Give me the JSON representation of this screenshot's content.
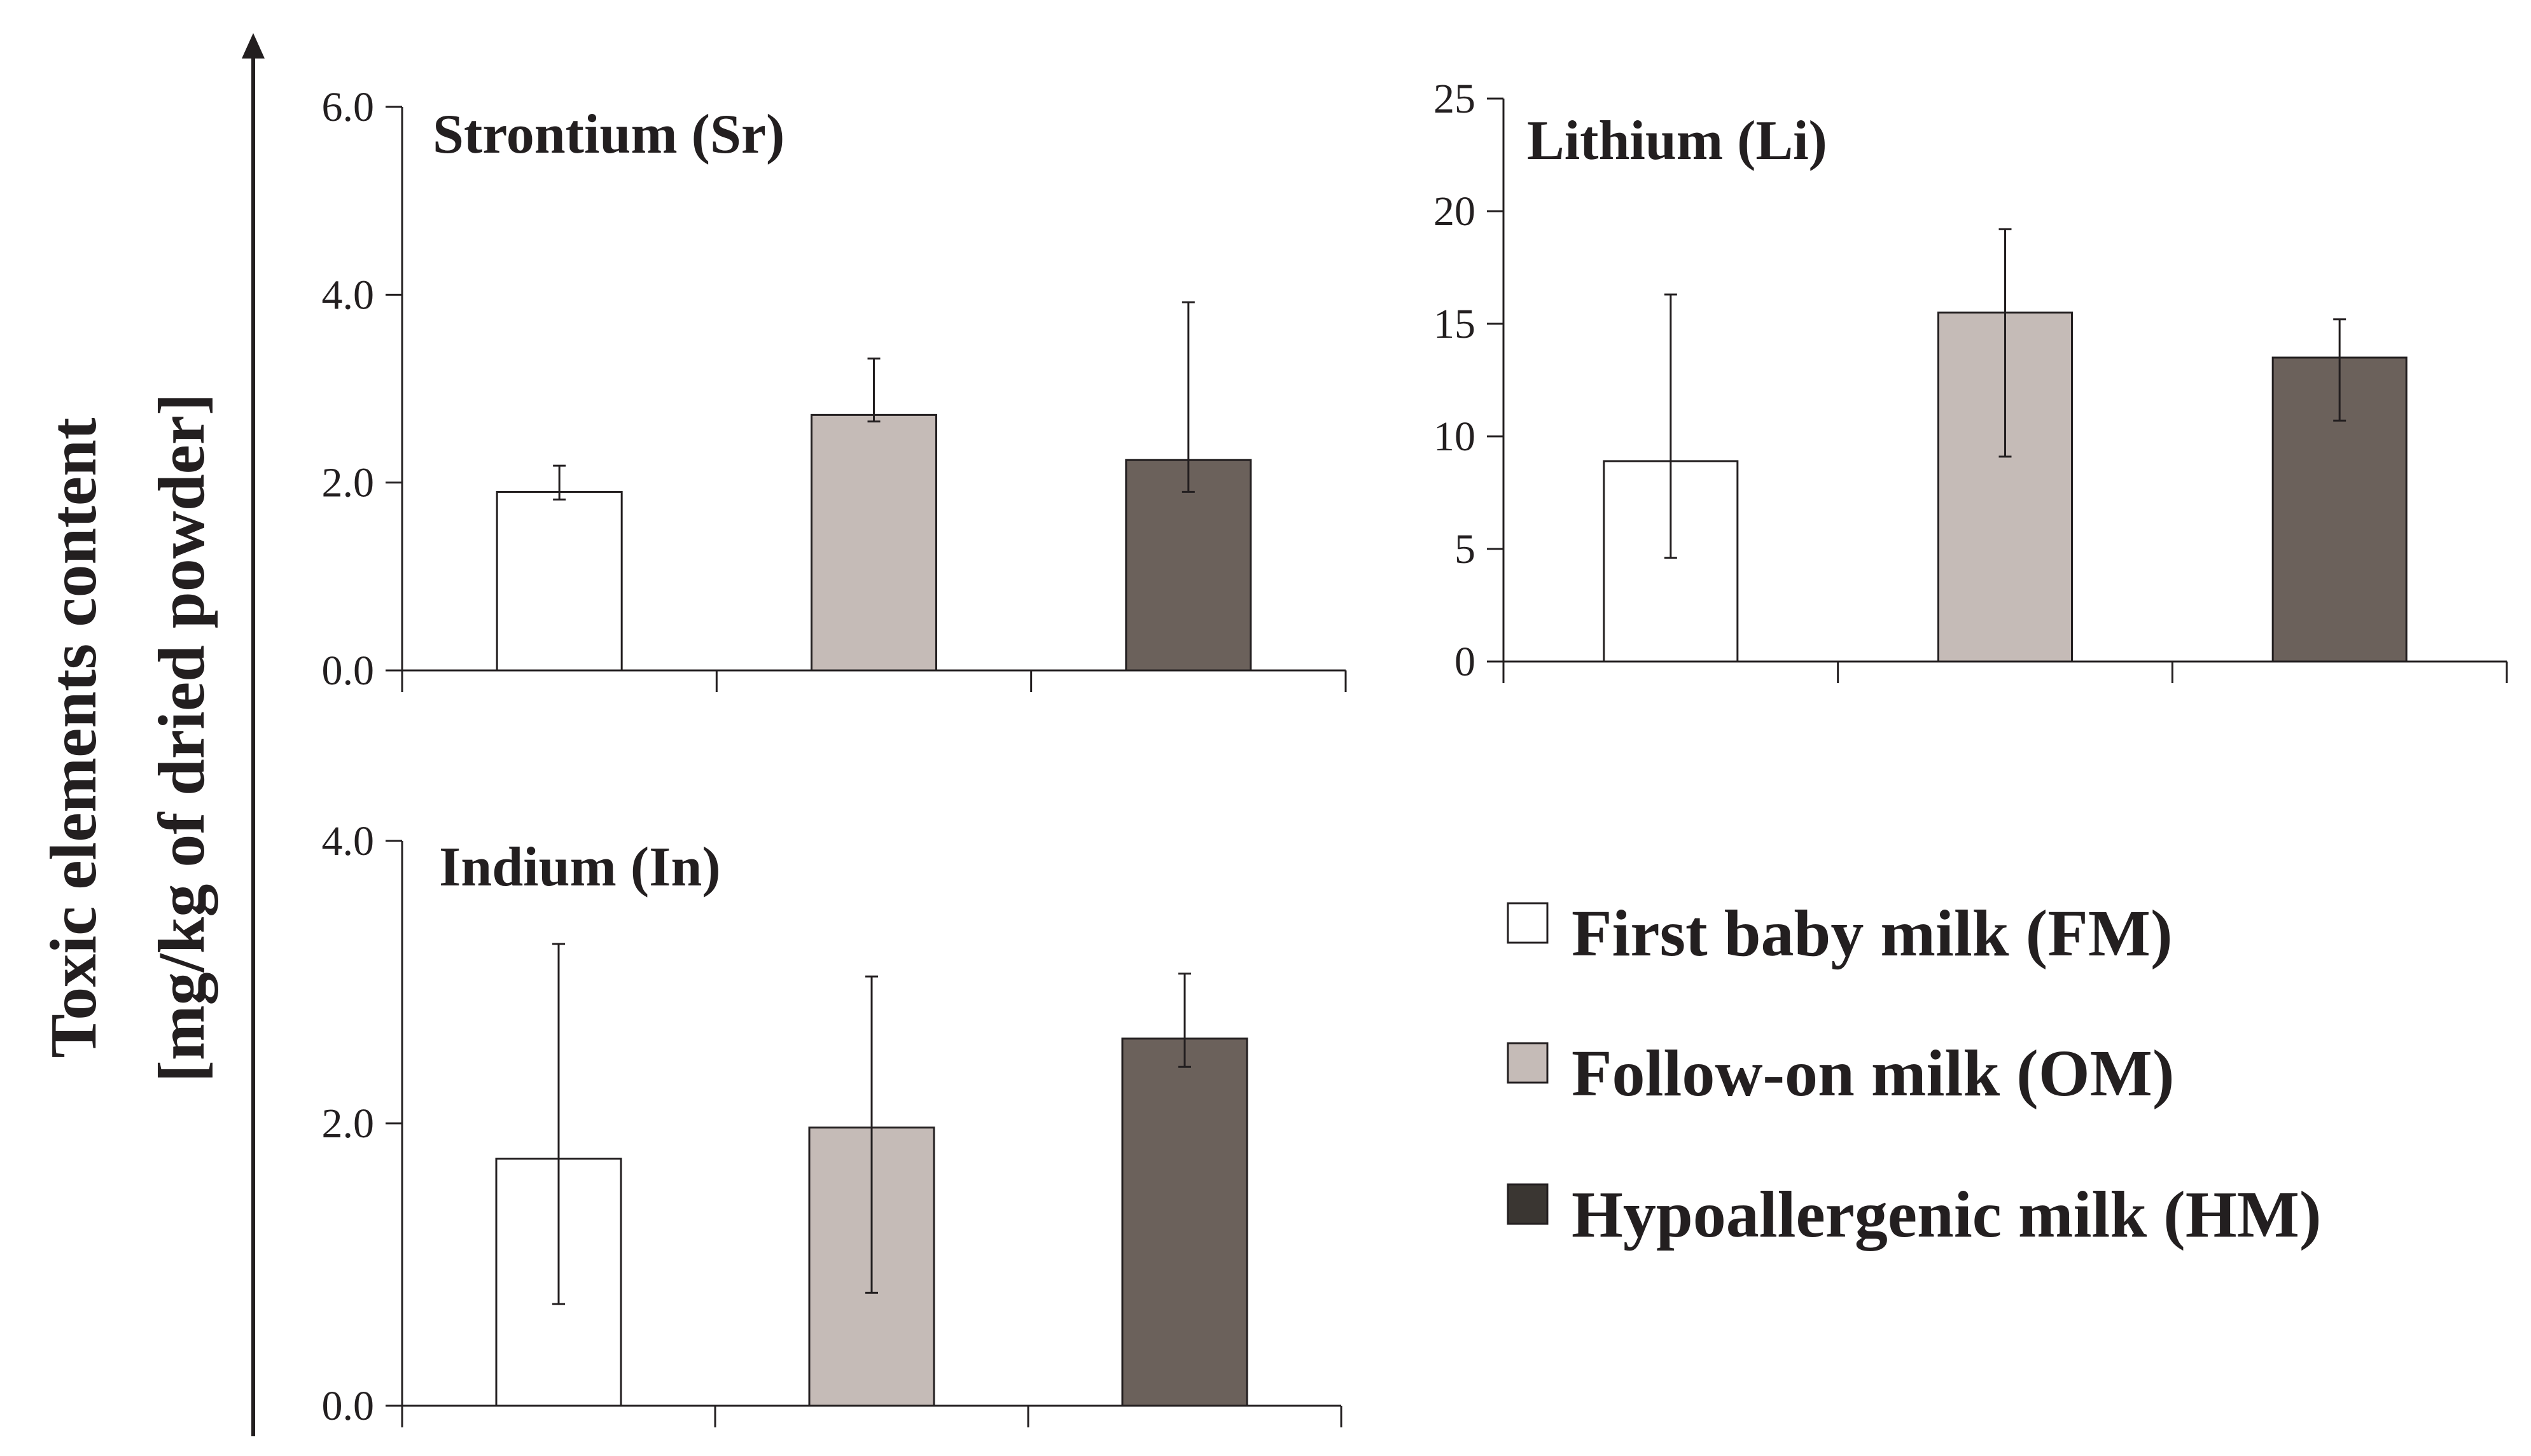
{
  "y_axis_label": [
    "Toxic elements content",
    "[mg/kg of dried powder]"
  ],
  "legend": [
    {
      "label": "First baby milk (FM)",
      "color": "#ffffff"
    },
    {
      "label": "Follow-on milk (OM)",
      "color": "#c5bbb7"
    },
    {
      "label": "Hypoallergenic milk (HM)",
      "color": "#3a3632"
    }
  ],
  "chart_data": [
    {
      "type": "bar",
      "title": "Strontium (Sr)",
      "categories": [
        "FM",
        "OM",
        "HM"
      ],
      "values": [
        1.9,
        2.72,
        2.24
      ],
      "errors": [
        [
          1.82,
          2.18
        ],
        [
          2.65,
          3.32
        ],
        [
          1.9,
          3.92
        ]
      ],
      "colors": [
        "#ffffff",
        "#c5bbb7",
        "#6b615b"
      ],
      "ylim": [
        0,
        6
      ],
      "yticks": [
        0,
        2,
        4,
        6
      ],
      "ytick_labels": [
        "0.0",
        "2.0",
        "4.0",
        "6.0"
      ]
    },
    {
      "type": "bar",
      "title": "Lithium (Li)",
      "categories": [
        "FM",
        "OM",
        "HM"
      ],
      "values": [
        8.9,
        15.5,
        13.5
      ],
      "errors": [
        [
          4.6,
          16.3
        ],
        [
          9.1,
          19.2
        ],
        [
          10.7,
          15.2
        ]
      ],
      "colors": [
        "#ffffff",
        "#c5bbb7",
        "#6b615b"
      ],
      "ylim": [
        0,
        25
      ],
      "yticks": [
        0,
        5,
        10,
        15,
        20,
        25
      ],
      "ytick_labels": [
        "0",
        "5",
        "10",
        "15",
        "20",
        "25"
      ]
    },
    {
      "type": "bar",
      "title": "Indium (In)",
      "categories": [
        "FM",
        "OM",
        "HM"
      ],
      "values": [
        1.75,
        1.97,
        2.6
      ],
      "errors": [
        [
          0.72,
          3.27
        ],
        [
          0.8,
          3.04
        ],
        [
          2.4,
          3.06
        ]
      ],
      "colors": [
        "#ffffff",
        "#c5bbb7",
        "#6b615b"
      ],
      "ylim": [
        0,
        4
      ],
      "yticks": [
        0,
        2,
        4
      ],
      "ytick_labels": [
        "0.0",
        "2.0",
        "4.0"
      ]
    }
  ]
}
